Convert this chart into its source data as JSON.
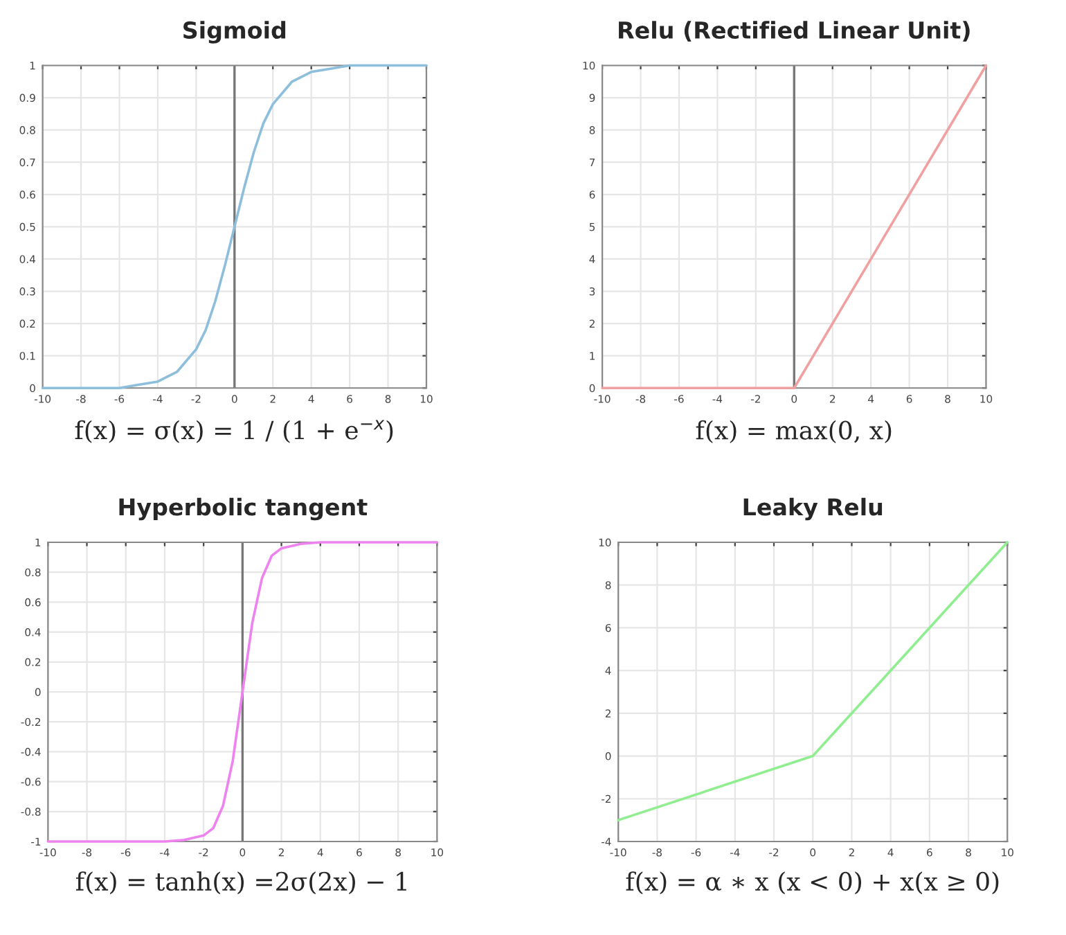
{
  "chart_data": [
    {
      "type": "line",
      "title": "Sigmoid",
      "x": [
        -10,
        -8,
        -6,
        -5,
        -4,
        -3,
        -2,
        -1.5,
        -1,
        -0.5,
        0,
        0.5,
        1,
        1.5,
        2,
        3,
        4,
        5,
        6,
        8,
        10
      ],
      "series": [
        {
          "color": "#8dbfdc",
          "values": [
            0,
            0,
            0,
            0.01,
            0.02,
            0.05,
            0.12,
            0.18,
            0.27,
            0.38,
            0.5,
            0.62,
            0.73,
            0.82,
            0.88,
            0.95,
            0.98,
            0.99,
            1,
            1,
            1
          ]
        }
      ],
      "xlim": [
        -10,
        10
      ],
      "xticks": [
        -10,
        -8,
        -6,
        -4,
        -2,
        0,
        2,
        4,
        6,
        8,
        10
      ],
      "ylim": [
        0,
        1
      ],
      "yticks": [
        0,
        0.1,
        0.2,
        0.3,
        0.4,
        0.5,
        0.6,
        0.7,
        0.8,
        0.9,
        1
      ],
      "ref_lines": [
        {
          "axis": "x",
          "value": 0,
          "color": "#777777"
        }
      ],
      "grid": true,
      "annotations": [
        "f(x) = σ(x) = 1 / (1 + e$^{−x}$)"
      ]
    },
    {
      "type": "line",
      "title": "Relu (Rectified Linear Unit)",
      "x": [
        -10,
        0,
        10
      ],
      "series": [
        {
          "color": "#f0a0a0",
          "values": [
            0,
            0,
            10
          ]
        }
      ],
      "xlim": [
        -10,
        10
      ],
      "xticks": [
        -10,
        -8,
        -6,
        -4,
        -2,
        0,
        2,
        4,
        6,
        8,
        10
      ],
      "ylim": [
        0,
        10
      ],
      "yticks": [
        0,
        1,
        2,
        3,
        4,
        5,
        6,
        7,
        8,
        9,
        10
      ],
      "ref_lines": [
        {
          "axis": "x",
          "value": 0,
          "color": "#777777"
        }
      ],
      "grid": true,
      "annotations": [
        "f(x) = max(0, x)"
      ]
    },
    {
      "type": "line",
      "title": "Hyperbolic tangent",
      "x": [
        -10,
        -4,
        -3,
        -2,
        -1.5,
        -1,
        -0.5,
        0,
        0.5,
        1,
        1.5,
        2,
        3,
        4,
        10
      ],
      "series": [
        {
          "color": "#ee82ee",
          "values": [
            -1,
            -1,
            -0.99,
            -0.96,
            -0.91,
            -0.76,
            -0.46,
            0,
            0.46,
            0.76,
            0.91,
            0.96,
            0.99,
            1,
            1
          ]
        }
      ],
      "xlim": [
        -10,
        10
      ],
      "xticks": [
        -10,
        -8,
        -6,
        -4,
        -2,
        0,
        2,
        4,
        6,
        8,
        10
      ],
      "ylim": [
        -1,
        1
      ],
      "yticks": [
        -1,
        -0.8,
        -0.6,
        -0.4,
        -0.2,
        0,
        0.2,
        0.4,
        0.6,
        0.8,
        1
      ],
      "ref_lines": [
        {
          "axis": "x",
          "value": 0,
          "color": "#777777"
        }
      ],
      "grid": true,
      "annotations": [
        "f(x) = tanh(x) =2σ(2x) − 1"
      ]
    },
    {
      "type": "line",
      "title": "Leaky Relu",
      "x": [
        -10,
        0,
        10
      ],
      "series": [
        {
          "color": "#90ee90",
          "values": [
            -3,
            0,
            10
          ]
        }
      ],
      "xlim": [
        -10,
        10
      ],
      "xticks": [
        -10,
        -8,
        -6,
        -4,
        -2,
        0,
        2,
        4,
        6,
        8,
        10
      ],
      "ylim": [
        -4,
        10
      ],
      "yticks": [
        -4,
        -2,
        0,
        2,
        4,
        6,
        8,
        10
      ],
      "grid": true,
      "annotations": [
        "f(x) = α ∗ x (x < 0) + x(x ≥ 0)"
      ]
    }
  ]
}
